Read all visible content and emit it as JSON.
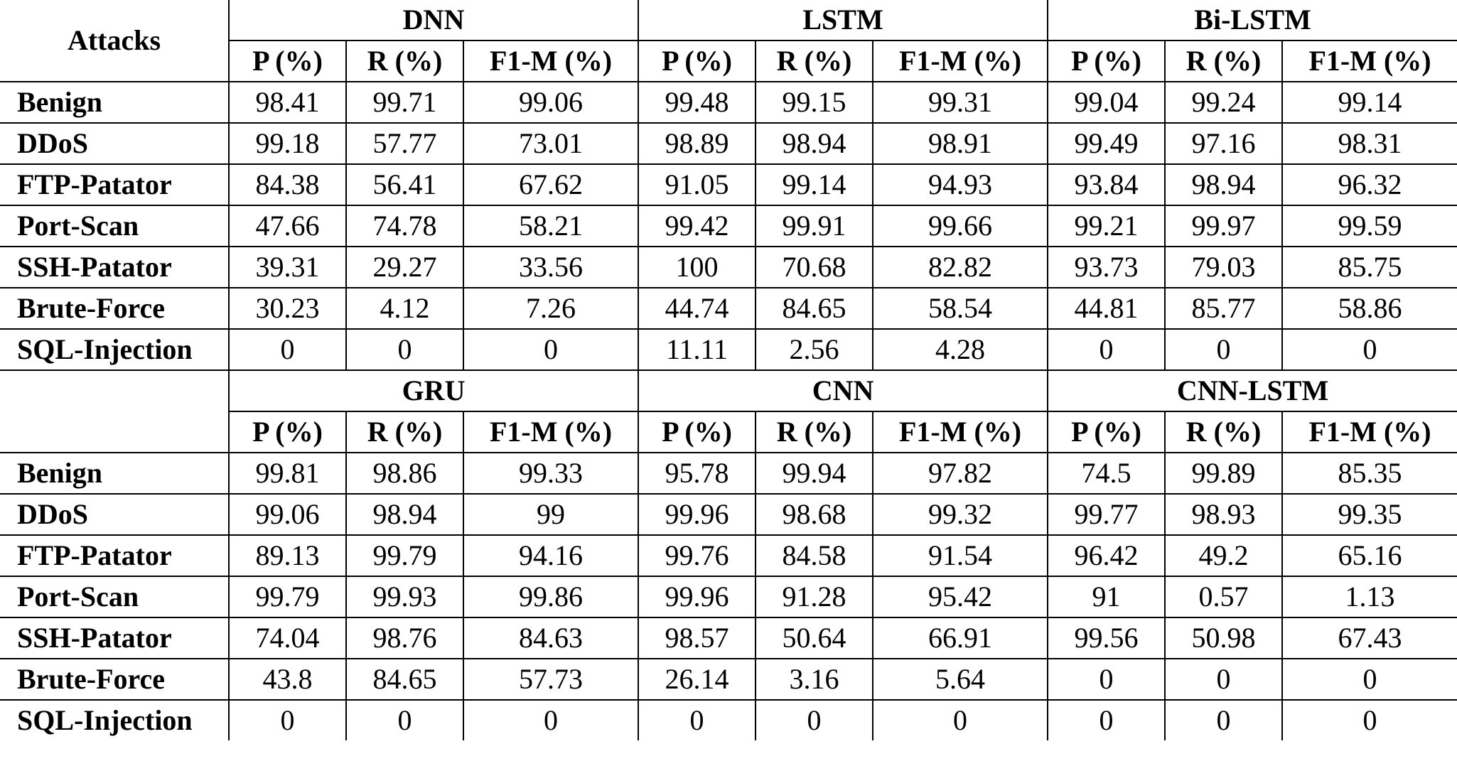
{
  "corner_label": "Attacks",
  "metrics": [
    "P (%)",
    "R (%)",
    "F1-M (%)"
  ],
  "blocks": [
    {
      "models": [
        "DNN",
        "LSTM",
        "Bi-LSTM"
      ],
      "rows": [
        {
          "attack": "Benign",
          "values": [
            "98.41",
            "99.71",
            "99.06",
            "99.48",
            "99.15",
            "99.31",
            "99.04",
            "99.24",
            "99.14"
          ]
        },
        {
          "attack": "DDoS",
          "values": [
            "99.18",
            "57.77",
            "73.01",
            "98.89",
            "98.94",
            "98.91",
            "99.49",
            "97.16",
            "98.31"
          ]
        },
        {
          "attack": "FTP-Patator",
          "values": [
            "84.38",
            "56.41",
            "67.62",
            "91.05",
            "99.14",
            "94.93",
            "93.84",
            "98.94",
            "96.32"
          ]
        },
        {
          "attack": "Port-Scan",
          "values": [
            "47.66",
            "74.78",
            "58.21",
            "99.42",
            "99.91",
            "99.66",
            "99.21",
            "99.97",
            "99.59"
          ]
        },
        {
          "attack": "SSH-Patator",
          "values": [
            "39.31",
            "29.27",
            "33.56",
            "100",
            "70.68",
            "82.82",
            "93.73",
            "79.03",
            "85.75"
          ]
        },
        {
          "attack": "Brute-Force",
          "values": [
            "30.23",
            "4.12",
            "7.26",
            "44.74",
            "84.65",
            "58.54",
            "44.81",
            "85.77",
            "58.86"
          ]
        },
        {
          "attack": "SQL-Injection",
          "values": [
            "0",
            "0",
            "0",
            "11.11",
            "2.56",
            "4.28",
            "0",
            "0",
            "0"
          ]
        }
      ]
    },
    {
      "models": [
        "GRU",
        "CNN",
        "CNN-LSTM"
      ],
      "rows": [
        {
          "attack": "Benign",
          "values": [
            "99.81",
            "98.86",
            "99.33",
            "95.78",
            "99.94",
            "97.82",
            "74.5",
            "99.89",
            "85.35"
          ]
        },
        {
          "attack": "DDoS",
          "values": [
            "99.06",
            "98.94",
            "99",
            "99.96",
            "98.68",
            "99.32",
            "99.77",
            "98.93",
            "99.35"
          ]
        },
        {
          "attack": "FTP-Patator",
          "values": [
            "89.13",
            "99.79",
            "94.16",
            "99.76",
            "84.58",
            "91.54",
            "96.42",
            "49.2",
            "65.16"
          ]
        },
        {
          "attack": "Port-Scan",
          "values": [
            "99.79",
            "99.93",
            "99.86",
            "99.96",
            "91.28",
            "95.42",
            "91",
            "0.57",
            "1.13"
          ]
        },
        {
          "attack": "SSH-Patator",
          "values": [
            "74.04",
            "98.76",
            "84.63",
            "98.57",
            "50.64",
            "66.91",
            "99.56",
            "50.98",
            "67.43"
          ]
        },
        {
          "attack": "Brute-Force",
          "values": [
            "43.8",
            "84.65",
            "57.73",
            "26.14",
            "3.16",
            "5.64",
            "0",
            "0",
            "0"
          ]
        },
        {
          "attack": "SQL-Injection",
          "values": [
            "0",
            "0",
            "0",
            "0",
            "0",
            "0",
            "0",
            "0",
            "0"
          ]
        }
      ]
    }
  ]
}
